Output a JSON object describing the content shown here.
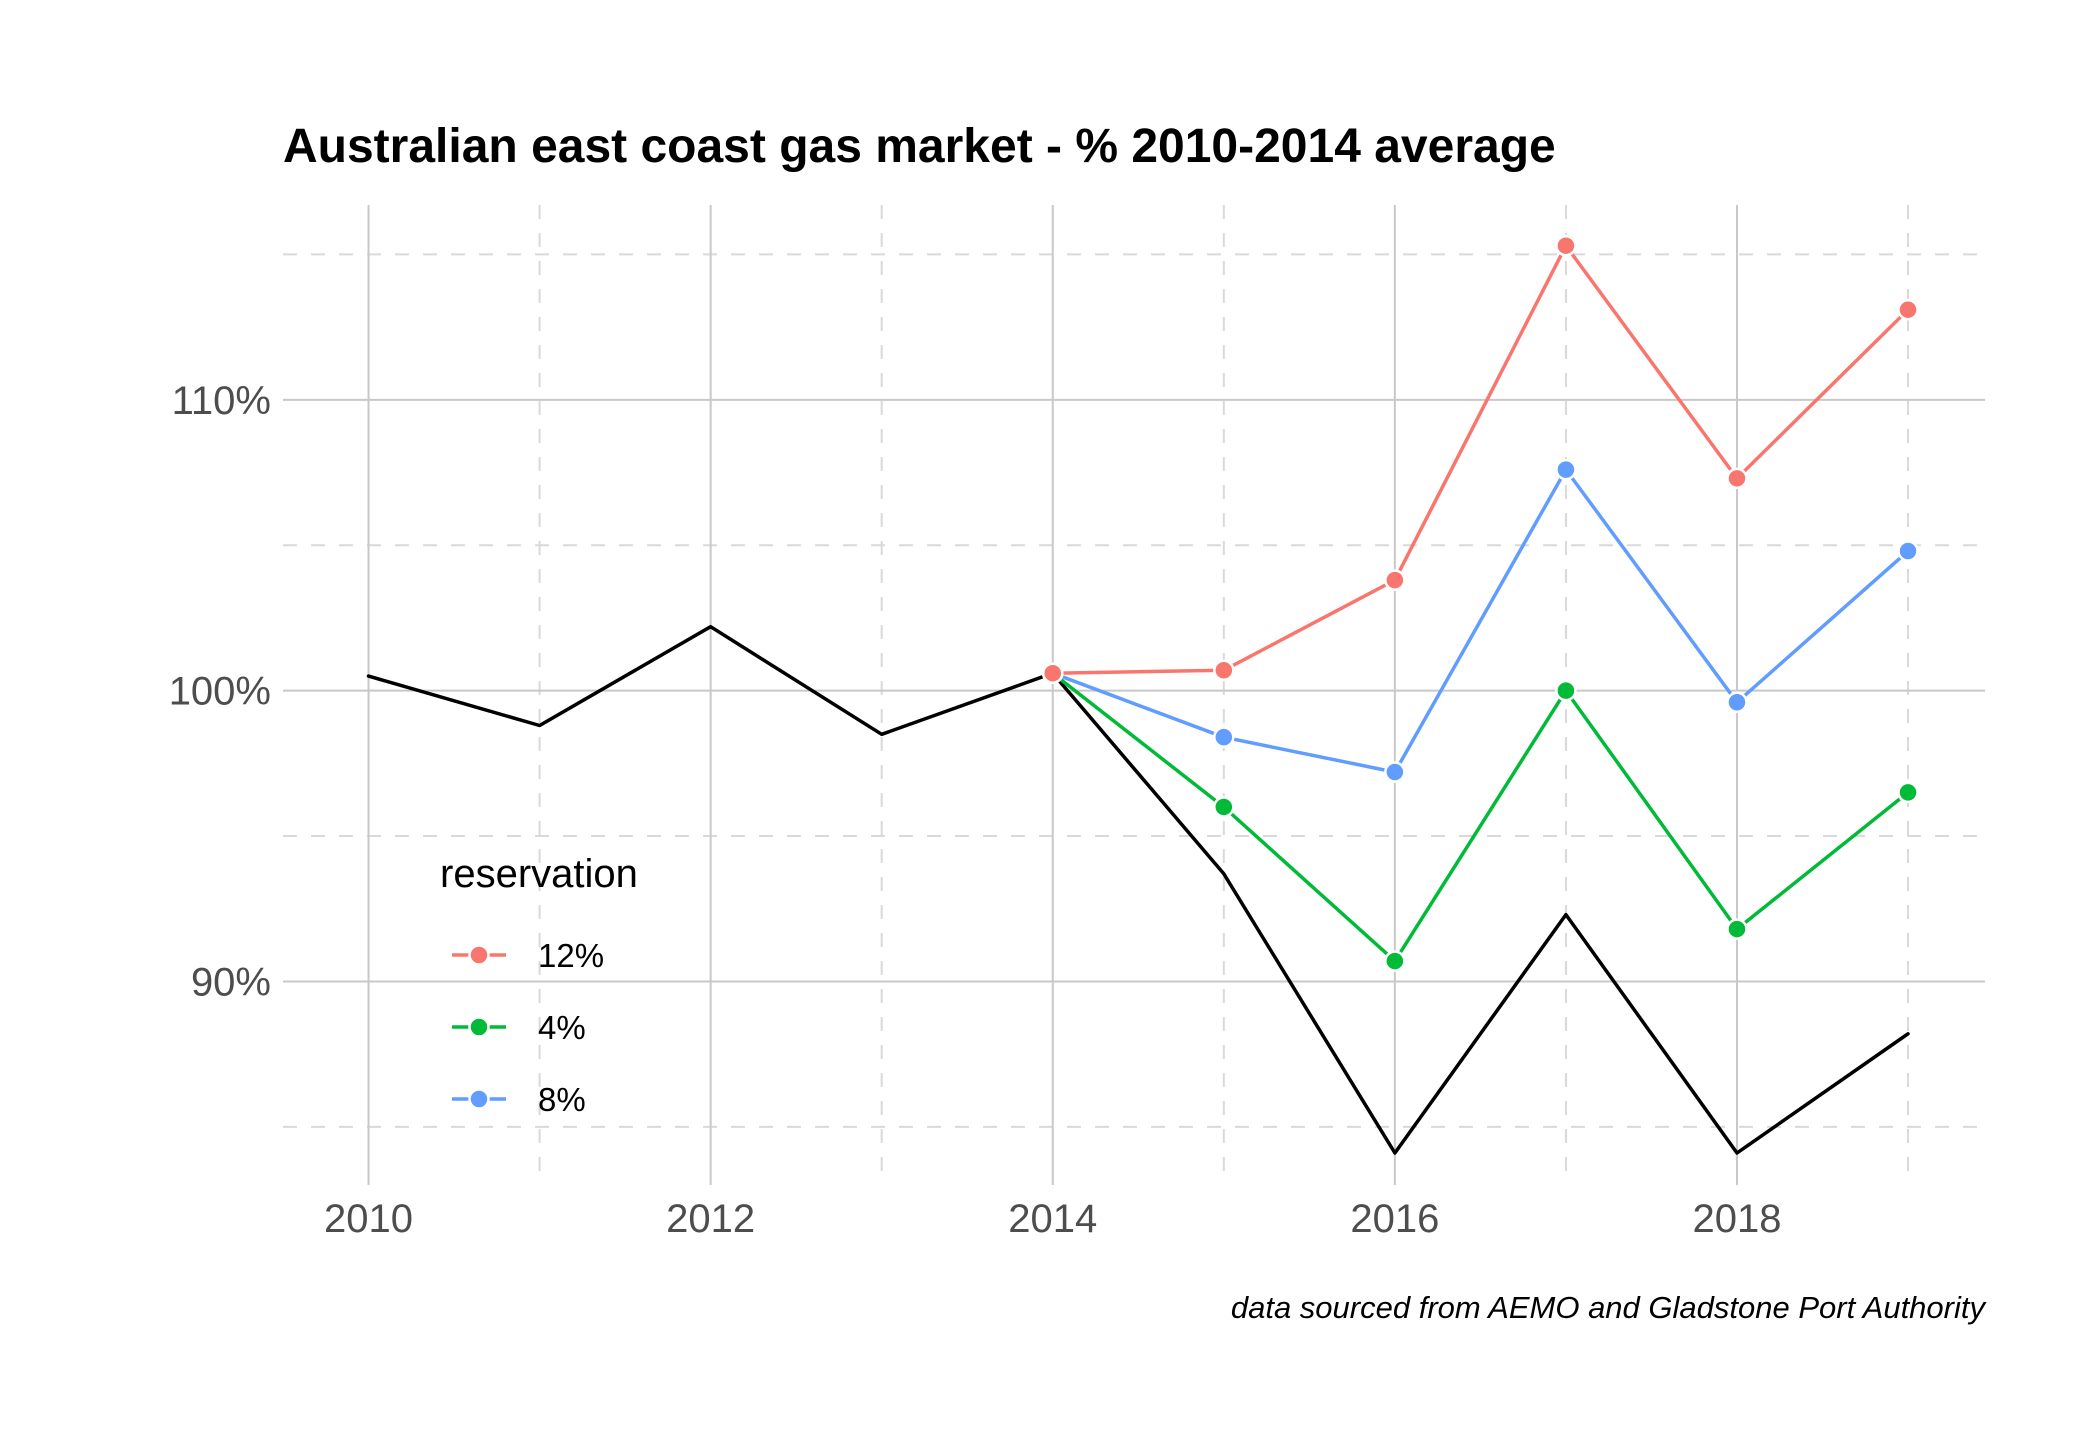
{
  "chart_data": {
    "type": "line",
    "title": "Australian east coast gas market -  % 2010-2014 average",
    "caption": "data sourced from AEMO and Gladstone Port Authority",
    "xlabel": "",
    "ylabel": "",
    "x_ticks": [
      2010,
      2012,
      2014,
      2016,
      2018
    ],
    "x_tick_labels": [
      "2010",
      "2012",
      "2014",
      "2016",
      "2018"
    ],
    "y_ticks": [
      0.9,
      1.0,
      1.1
    ],
    "y_tick_labels": [
      "90%",
      "100%",
      "110%"
    ],
    "xlim": [
      2009.5,
      2019.45
    ],
    "ylim": [
      0.83,
      1.167
    ],
    "grid": true,
    "legend": {
      "title": "reservation",
      "position": "inside-bottom-left",
      "entries": [
        {
          "label": "12%",
          "color": "#F8766D"
        },
        {
          "label": "4%",
          "color": "#00BA38"
        },
        {
          "label": "8%",
          "color": "#619CFF"
        }
      ]
    },
    "baseline": {
      "color": "#000000",
      "x": [
        2010,
        2011,
        2012,
        2013,
        2014,
        2015,
        2016,
        2017,
        2018,
        2019
      ],
      "y": [
        1.005,
        0.988,
        1.022,
        0.985,
        1.006,
        0.937,
        0.841,
        0.923,
        0.841,
        0.882
      ]
    },
    "series": [
      {
        "name": "12%",
        "color": "#F8766D",
        "x": [
          2014,
          2015,
          2016,
          2017,
          2018,
          2019
        ],
        "y": [
          1.006,
          1.007,
          1.038,
          1.153,
          1.073,
          1.131
        ]
      },
      {
        "name": "4%",
        "color": "#00BA38",
        "x": [
          2014,
          2015,
          2016,
          2017,
          2018,
          2019
        ],
        "y": [
          1.006,
          0.96,
          0.907,
          1.0,
          0.918,
          0.965
        ]
      },
      {
        "name": "8%",
        "color": "#619CFF",
        "x": [
          2014,
          2015,
          2016,
          2017,
          2018,
          2019
        ],
        "y": [
          1.006,
          0.984,
          0.972,
          1.076,
          0.996,
          1.048
        ]
      }
    ]
  }
}
